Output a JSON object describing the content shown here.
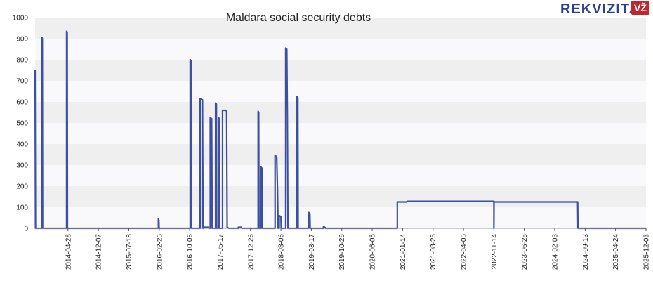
{
  "brand": {
    "name": "REKVIZITAI",
    "badge": "VŽ"
  },
  "chart_data": {
    "type": "line",
    "title": "Maldara social security debts",
    "xlabel": "",
    "ylabel": "",
    "ylim": [
      0,
      1000
    ],
    "y_ticks": [
      0,
      100,
      200,
      300,
      400,
      500,
      600,
      700,
      800,
      900,
      1000
    ],
    "x_ticks": [
      "2014-04-28",
      "2014-12-07",
      "2015-07-18",
      "2016-02-26",
      "2016-10-06",
      "2017-05-17",
      "2017-12-26",
      "2018-08-06",
      "2019-03-17",
      "2019-10-26",
      "2020-06-05",
      "2021-01-14",
      "2021-08-25",
      "2022-04-05",
      "2022-11-14",
      "2023-06-25",
      "2024-02-03",
      "2024-09-13",
      "2025-04-24",
      "2025-12-03"
    ],
    "x_range": [
      "2013-08-30",
      "2025-12-03"
    ],
    "grid": true,
    "legend": "none",
    "colors": {
      "line": "#3d4fa0",
      "band_dark": "#efefef",
      "band_light": "#f9f9fb"
    },
    "series": [
      {
        "values": [
          [
            "2013-08-30",
            750
          ],
          [
            "2013-09-02",
            0
          ],
          [
            "2013-10-20",
            0
          ],
          [
            "2013-10-20",
            905
          ],
          [
            "2013-10-22",
            900
          ],
          [
            "2013-10-24",
            0
          ],
          [
            "2014-04-18",
            0
          ],
          [
            "2014-04-18",
            935
          ],
          [
            "2014-04-22",
            930
          ],
          [
            "2014-04-24",
            0
          ],
          [
            "2016-02-20",
            0
          ],
          [
            "2016-02-20",
            45
          ],
          [
            "2016-02-23",
            40
          ],
          [
            "2016-02-25",
            0
          ],
          [
            "2016-10-10",
            0
          ],
          [
            "2016-10-10",
            800
          ],
          [
            "2016-10-18",
            795
          ],
          [
            "2016-10-20",
            0
          ],
          [
            "2016-12-22",
            0
          ],
          [
            "2016-12-22",
            615
          ],
          [
            "2017-01-08",
            610
          ],
          [
            "2017-01-12",
            0
          ],
          [
            "2017-01-15",
            0
          ],
          [
            "2017-01-15",
            5
          ],
          [
            "2017-02-20",
            5
          ],
          [
            "2017-02-25",
            0
          ],
          [
            "2017-03-06",
            0
          ],
          [
            "2017-03-06",
            525
          ],
          [
            "2017-03-16",
            520
          ],
          [
            "2017-03-20",
            0
          ],
          [
            "2017-04-14",
            0
          ],
          [
            "2017-04-14",
            595
          ],
          [
            "2017-04-20",
            590
          ],
          [
            "2017-04-22",
            0
          ],
          [
            "2017-05-06",
            0
          ],
          [
            "2017-05-06",
            525
          ],
          [
            "2017-05-12",
            520
          ],
          [
            "2017-05-14",
            0
          ],
          [
            "2017-06-04",
            0
          ],
          [
            "2017-06-04",
            560
          ],
          [
            "2017-06-28",
            560
          ],
          [
            "2017-07-04",
            555
          ],
          [
            "2017-07-08",
            5
          ],
          [
            "2017-07-20",
            0
          ],
          [
            "2017-09-28",
            0
          ],
          [
            "2017-09-28",
            5
          ],
          [
            "2017-10-20",
            5
          ],
          [
            "2017-10-25",
            0
          ],
          [
            "2018-02-20",
            0
          ],
          [
            "2018-02-20",
            555
          ],
          [
            "2018-02-24",
            550
          ],
          [
            "2018-02-26",
            0
          ],
          [
            "2018-03-14",
            0
          ],
          [
            "2018-03-14",
            290
          ],
          [
            "2018-03-20",
            285
          ],
          [
            "2018-03-22",
            0
          ],
          [
            "2018-06-24",
            0
          ],
          [
            "2018-06-24",
            345
          ],
          [
            "2018-07-06",
            340
          ],
          [
            "2018-07-12",
            180
          ],
          [
            "2018-07-16",
            0
          ],
          [
            "2018-07-24",
            0
          ],
          [
            "2018-07-24",
            60
          ],
          [
            "2018-08-06",
            55
          ],
          [
            "2018-08-08",
            0
          ],
          [
            "2018-09-10",
            0
          ],
          [
            "2018-09-10",
            855
          ],
          [
            "2018-09-18",
            850
          ],
          [
            "2018-09-22",
            540
          ],
          [
            "2018-09-26",
            0
          ],
          [
            "2018-12-02",
            0
          ],
          [
            "2018-12-02",
            625
          ],
          [
            "2018-12-08",
            620
          ],
          [
            "2018-12-10",
            0
          ],
          [
            "2019-02-26",
            0
          ],
          [
            "2019-02-26",
            75
          ],
          [
            "2019-03-06",
            70
          ],
          [
            "2019-03-08",
            0
          ],
          [
            "2019-06-14",
            0
          ],
          [
            "2019-06-14",
            8
          ],
          [
            "2019-06-24",
            5
          ],
          [
            "2019-06-28",
            0
          ],
          [
            "2020-12-06",
            0
          ],
          [
            "2020-12-06",
            125
          ],
          [
            "2021-02-14",
            125
          ],
          [
            "2021-02-16",
            128
          ],
          [
            "2022-11-14",
            128
          ],
          [
            "2022-11-14",
            0
          ],
          [
            "2022-11-15",
            125
          ],
          [
            "2024-07-20",
            125
          ],
          [
            "2024-07-22",
            0
          ],
          [
            "2025-12-03",
            0
          ]
        ]
      }
    ]
  }
}
